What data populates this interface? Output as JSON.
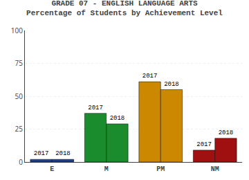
{
  "chart_data": {
    "type": "bar",
    "title": "GRADE 07 - ENGLISH LANGUAGE ARTS",
    "subtitle": "Percentage of Students by Achievement Level",
    "categories": [
      "E",
      "M",
      "PM",
      "NM"
    ],
    "series": [
      {
        "name": "2017",
        "values": [
          2,
          37,
          61,
          9
        ],
        "colors": [
          "#1f3f8c",
          "#1a8c2e",
          "#cc8800",
          "#a01010"
        ]
      },
      {
        "name": "2018",
        "values": [
          2,
          29,
          55,
          18
        ],
        "colors": [
          "#1f3f8c",
          "#1a8c2e",
          "#cc8800",
          "#a01010"
        ]
      }
    ],
    "ylim": [
      0,
      100
    ],
    "yticks": [
      0,
      25,
      50,
      75,
      100
    ],
    "grid": true
  }
}
